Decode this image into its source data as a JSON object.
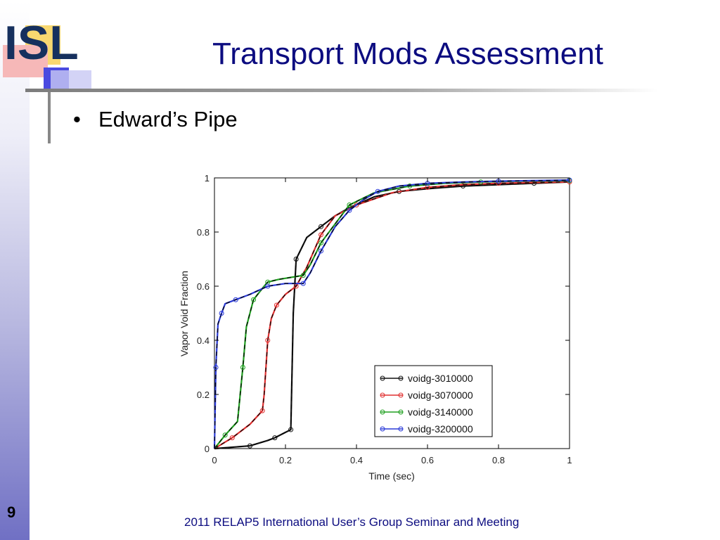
{
  "slide": {
    "title": "Transport Mods Assessment",
    "bullets": [
      "Edward’s Pipe"
    ],
    "number": "9",
    "footer": "2011 RELAP5 International User’s Group Seminar and Meeting",
    "logo_text": "ISL",
    "colors": {
      "title": "#0c0c80",
      "footer": "#0c0c80",
      "logo": "#16305e",
      "band_bottom": "#7070c4"
    }
  },
  "chart_data": {
    "type": "line",
    "xlabel": "Time (sec)",
    "ylabel": "Vapor Void Fraction",
    "xlim": [
      0,
      1
    ],
    "ylim": [
      0,
      1
    ],
    "xticks": [
      0,
      0.2,
      0.4,
      0.6,
      0.8,
      1
    ],
    "yticks": [
      0,
      0.2,
      0.4,
      0.6,
      0.8,
      1
    ],
    "xtick_labels": [
      "0",
      "0.2",
      "0.4",
      "0.6",
      "0.8",
      "1"
    ],
    "ytick_labels": [
      "0",
      "0.2",
      "0.4",
      "0.6",
      "0.8",
      "1"
    ],
    "grid": false,
    "legend_position": "bottom-right",
    "series": [
      {
        "name": "voidg-3010000",
        "color": "#111111",
        "x": [
          0,
          0.1,
          0.15,
          0.17,
          0.2,
          0.215,
          0.222,
          0.23,
          0.26,
          0.3,
          0.34,
          0.38,
          0.45,
          0.52,
          0.6,
          0.7,
          0.8,
          0.9,
          1.0
        ],
        "y": [
          0,
          0.01,
          0.03,
          0.04,
          0.06,
          0.07,
          0.5,
          0.7,
          0.78,
          0.82,
          0.86,
          0.89,
          0.93,
          0.95,
          0.96,
          0.97,
          0.975,
          0.98,
          0.985
        ]
      },
      {
        "name": "voidg-3070000",
        "color": "#e03030",
        "x": [
          0,
          0.05,
          0.1,
          0.135,
          0.14,
          0.15,
          0.16,
          0.175,
          0.2,
          0.23,
          0.26,
          0.3,
          0.34,
          0.4,
          0.5,
          0.6,
          0.7,
          0.8,
          0.9,
          1.0
        ],
        "y": [
          0,
          0.04,
          0.09,
          0.14,
          0.2,
          0.4,
          0.48,
          0.53,
          0.57,
          0.6,
          0.67,
          0.79,
          0.86,
          0.9,
          0.945,
          0.965,
          0.975,
          0.98,
          0.983,
          0.985
        ]
      },
      {
        "name": "voidg-3140000",
        "color": "#20a020",
        "x": [
          0,
          0.03,
          0.065,
          0.08,
          0.09,
          0.11,
          0.14,
          0.15,
          0.18,
          0.25,
          0.27,
          0.3,
          0.34,
          0.38,
          0.45,
          0.55,
          0.65,
          0.75,
          0.85,
          1.0
        ],
        "y": [
          0,
          0.05,
          0.1,
          0.3,
          0.45,
          0.55,
          0.6,
          0.615,
          0.625,
          0.64,
          0.68,
          0.76,
          0.83,
          0.9,
          0.945,
          0.97,
          0.98,
          0.985,
          0.988,
          0.99
        ]
      },
      {
        "name": "voidg-3200000",
        "color": "#2a3ad8",
        "x": [
          0,
          0.004,
          0.01,
          0.02,
          0.03,
          0.06,
          0.1,
          0.15,
          0.2,
          0.25,
          0.27,
          0.3,
          0.34,
          0.38,
          0.42,
          0.46,
          0.52,
          0.6,
          0.7,
          0.8,
          0.9,
          1.0
        ],
        "y": [
          0,
          0.3,
          0.46,
          0.5,
          0.535,
          0.55,
          0.57,
          0.6,
          0.61,
          0.61,
          0.65,
          0.73,
          0.82,
          0.88,
          0.92,
          0.95,
          0.97,
          0.98,
          0.985,
          0.988,
          0.99,
          0.992
        ]
      }
    ]
  }
}
